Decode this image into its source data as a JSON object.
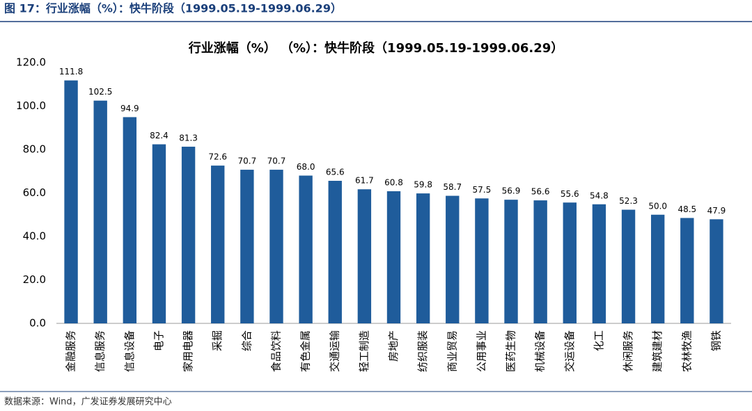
{
  "header": "图 17：行业涨幅（%）：快牛阶段（1999.05.19-1999.06.29）",
  "source": "数据来源：Wind，广发证券发展研究中心",
  "chart_data": {
    "type": "bar",
    "title": "行业涨幅（%） （%）：快牛阶段（1999.05.19-1999.06.29）",
    "categories": [
      "金融服务",
      "信息服务",
      "信息设备",
      "电子",
      "家用电器",
      "采掘",
      "综合",
      "食品饮料",
      "有色金属",
      "交通运输",
      "轻工制造",
      "房地产",
      "纺织服装",
      "商业贸易",
      "公用事业",
      "医药生物",
      "机械设备",
      "交运设备",
      "化工",
      "休闲服务",
      "建筑建材",
      "农林牧渔",
      "钢铁"
    ],
    "values": [
      111.8,
      102.5,
      94.9,
      82.4,
      81.3,
      72.6,
      70.7,
      70.7,
      68.0,
      65.6,
      61.7,
      60.8,
      59.8,
      58.7,
      57.5,
      56.9,
      56.6,
      55.6,
      54.8,
      52.3,
      50.0,
      48.5,
      47.9
    ],
    "value_labels": [
      "111.8",
      "102.5",
      "94.9",
      "82.4",
      "81.3",
      "72.6",
      "70.7",
      "70.7",
      "68.0",
      "65.6",
      "61.7",
      "60.8",
      "59.8",
      "58.7",
      "57.5",
      "56.9",
      "56.6",
      "55.6",
      "54.8",
      "52.3",
      "50.0",
      "48.5",
      "47.9"
    ],
    "color": "#1f5c9b",
    "ylim": [
      0,
      120
    ],
    "yticks": [
      {
        "value": 0,
        "label": "0.0"
      },
      {
        "value": 20,
        "label": "20.0"
      },
      {
        "value": 40,
        "label": "40.0"
      },
      {
        "value": 60,
        "label": "60.0"
      },
      {
        "value": 80,
        "label": "80.0"
      },
      {
        "value": 100,
        "label": "100.0"
      },
      {
        "value": 120,
        "label": "120.0"
      }
    ],
    "grid": false
  }
}
